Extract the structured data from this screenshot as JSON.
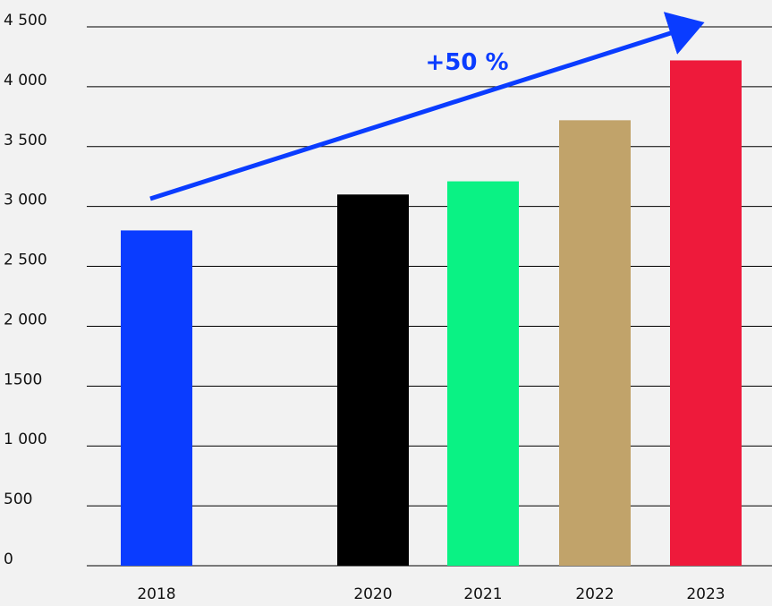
{
  "chart_data": {
    "type": "bar",
    "categories": [
      "2018",
      "2020",
      "2021",
      "2022",
      "2023"
    ],
    "values": [
      2800,
      3100,
      3210,
      3720,
      4220
    ],
    "bar_colors": [
      "#0a3cff",
      "#000000",
      "#0af284",
      "#c1a36a",
      "#ee1a3b"
    ],
    "ylim": [
      0,
      4500
    ],
    "yticks": [
      {
        "value": 0,
        "label": "0"
      },
      {
        "value": 500,
        "label": "500"
      },
      {
        "value": 1000,
        "label": "1 000"
      },
      {
        "value": 1500,
        "label": "1500"
      },
      {
        "value": 2000,
        "label": "2 000"
      },
      {
        "value": 2500,
        "label": "2 500"
      },
      {
        "value": 3000,
        "label": "3 000"
      },
      {
        "value": 3500,
        "label": "3 500"
      },
      {
        "value": 4000,
        "label": "4 000"
      },
      {
        "value": 4500,
        "label": "4 500"
      }
    ],
    "grid": true,
    "annotation": {
      "text": "+50 %",
      "color": "#0a3cff"
    },
    "title": "",
    "xlabel": "",
    "ylabel": ""
  }
}
